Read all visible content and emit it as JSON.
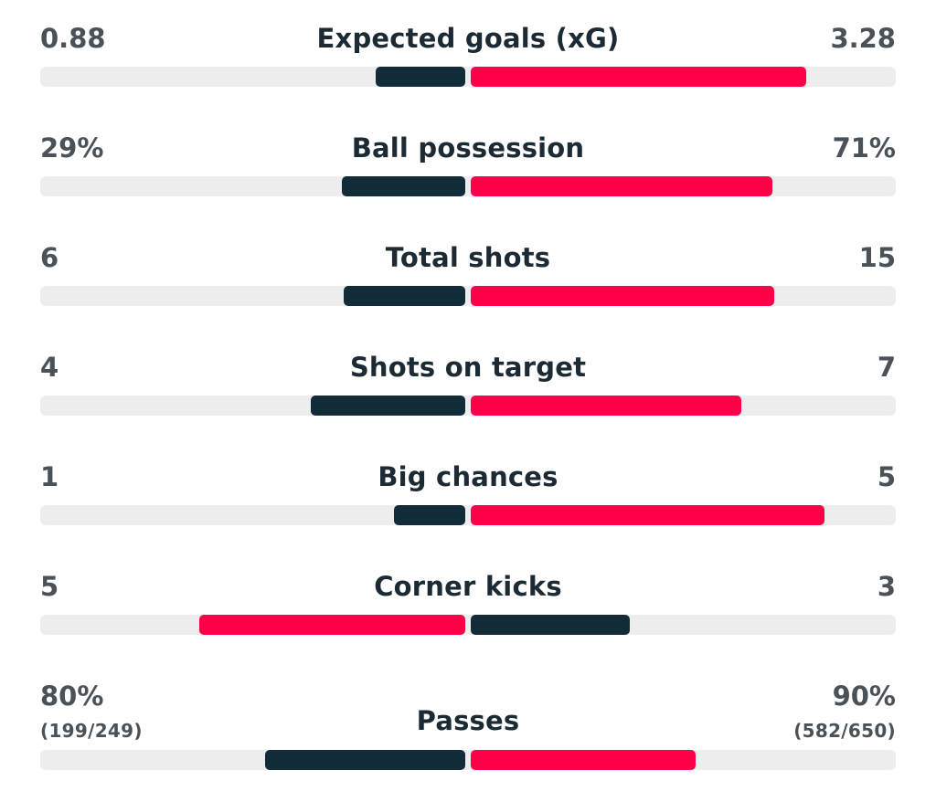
{
  "colors": {
    "home": "#122b38",
    "away": "#ff0048",
    "track": "#ededed",
    "label": "#1b2a33",
    "value": "#4a5157"
  },
  "stats": [
    {
      "label": "Expected goals (xG)",
      "home_value": "0.88",
      "away_value": "3.28",
      "home_share": 0.21,
      "away_share": 0.79,
      "leader": "away"
    },
    {
      "label": "Ball possession",
      "home_value": "29%",
      "away_value": "71%",
      "home_share": 0.29,
      "away_share": 0.71,
      "leader": "away"
    },
    {
      "label": "Total shots",
      "home_value": "6",
      "away_value": "15",
      "home_share": 0.286,
      "away_share": 0.714,
      "leader": "away"
    },
    {
      "label": "Shots on target",
      "home_value": "4",
      "away_value": "7",
      "home_share": 0.364,
      "away_share": 0.636,
      "leader": "away"
    },
    {
      "label": "Big chances",
      "home_value": "1",
      "away_value": "5",
      "home_share": 0.167,
      "away_share": 0.833,
      "leader": "away"
    },
    {
      "label": "Corner kicks",
      "home_value": "5",
      "away_value": "3",
      "home_share": 0.625,
      "away_share": 0.375,
      "leader": "home"
    },
    {
      "label": "Passes",
      "home_value": "80%",
      "away_value": "90%",
      "home_sub": "(199/249)",
      "away_sub": "(582/650)",
      "home_share": 0.47,
      "away_share": 0.53,
      "leader": "away"
    }
  ]
}
